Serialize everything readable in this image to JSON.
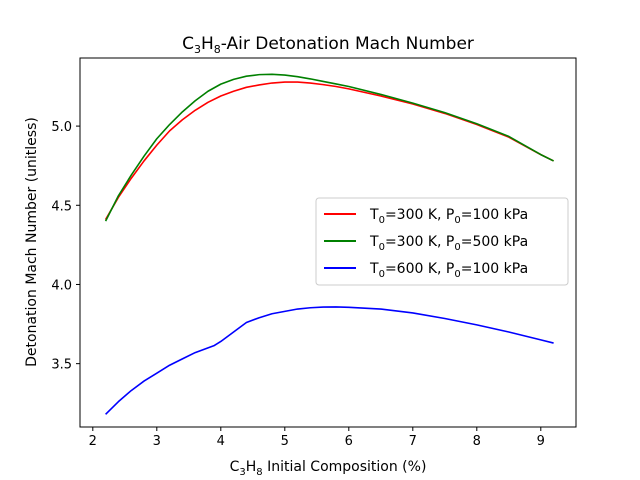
{
  "chart_data": {
    "type": "line",
    "title": {
      "pre": "C",
      "sub1": "3",
      "mid": "H",
      "sub2": "8",
      "post": "-Air Detonation Mach Number"
    },
    "xlabel": {
      "pre": "C",
      "sub1": "3",
      "mid": "H",
      "sub2": "8",
      "post": " Initial Composition (%)"
    },
    "ylabel": "Detonation Mach Number (unitless)",
    "xlim": [
      1.8,
      9.55
    ],
    "ylim": [
      3.1,
      5.43
    ],
    "xticks": [
      2,
      3,
      4,
      5,
      6,
      7,
      8,
      9
    ],
    "yticks": [
      3.5,
      4.0,
      4.5,
      5.0
    ],
    "ytick_labels": [
      "3.5",
      "4.0",
      "4.5",
      "5.0"
    ],
    "grid": false,
    "legend_position": "center-right",
    "series": [
      {
        "name": {
          "t": "T",
          "ts": "0",
          "mid": "=300 K, P",
          "ps": "0",
          "post": "=100 kPa"
        },
        "color": "#ff0000",
        "x": [
          2.2,
          2.4,
          2.6,
          2.8,
          3.0,
          3.2,
          3.4,
          3.6,
          3.8,
          4.0,
          4.2,
          4.4,
          4.6,
          4.8,
          5.0,
          5.2,
          5.4,
          5.6,
          5.8,
          6.0,
          6.5,
          7.0,
          7.5,
          8.0,
          8.5,
          9.0,
          9.2
        ],
        "y": [
          4.41,
          4.55,
          4.67,
          4.78,
          4.88,
          4.97,
          5.04,
          5.1,
          5.15,
          5.19,
          5.22,
          5.245,
          5.26,
          5.272,
          5.278,
          5.278,
          5.272,
          5.262,
          5.25,
          5.235,
          5.19,
          5.14,
          5.08,
          5.01,
          4.93,
          4.82,
          4.78
        ]
      },
      {
        "name": {
          "t": "T",
          "ts": "0",
          "mid": "=300 K, P",
          "ps": "0",
          "post": "=500 kPa"
        },
        "color": "#008000",
        "x": [
          2.2,
          2.4,
          2.6,
          2.8,
          3.0,
          3.2,
          3.4,
          3.6,
          3.8,
          4.0,
          4.2,
          4.4,
          4.6,
          4.8,
          5.0,
          5.2,
          5.4,
          5.6,
          5.8,
          6.0,
          6.5,
          7.0,
          7.5,
          8.0,
          8.5,
          9.0,
          9.2
        ],
        "y": [
          4.4,
          4.56,
          4.69,
          4.81,
          4.92,
          5.01,
          5.09,
          5.16,
          5.22,
          5.265,
          5.295,
          5.315,
          5.325,
          5.327,
          5.322,
          5.312,
          5.298,
          5.282,
          5.266,
          5.25,
          5.2,
          5.145,
          5.085,
          5.015,
          4.935,
          4.82,
          4.78
        ]
      },
      {
        "name": {
          "t": "T",
          "ts": "0",
          "mid": "=600 K, P",
          "ps": "0",
          "post": "=100 kPa"
        },
        "color": "#0000ff",
        "x": [
          2.2,
          2.4,
          2.6,
          2.8,
          3.0,
          3.2,
          3.4,
          3.6,
          3.8,
          3.9,
          4.0,
          4.2,
          4.4,
          4.6,
          4.8,
          5.0,
          5.2,
          5.4,
          5.6,
          5.8,
          6.0,
          6.5,
          7.0,
          7.5,
          8.0,
          8.5,
          9.0,
          9.2
        ],
        "y": [
          3.18,
          3.26,
          3.33,
          3.39,
          3.44,
          3.49,
          3.53,
          3.57,
          3.6,
          3.615,
          3.64,
          3.7,
          3.76,
          3.79,
          3.815,
          3.83,
          3.845,
          3.853,
          3.857,
          3.858,
          3.856,
          3.845,
          3.82,
          3.785,
          3.745,
          3.7,
          3.65,
          3.63
        ]
      }
    ]
  }
}
